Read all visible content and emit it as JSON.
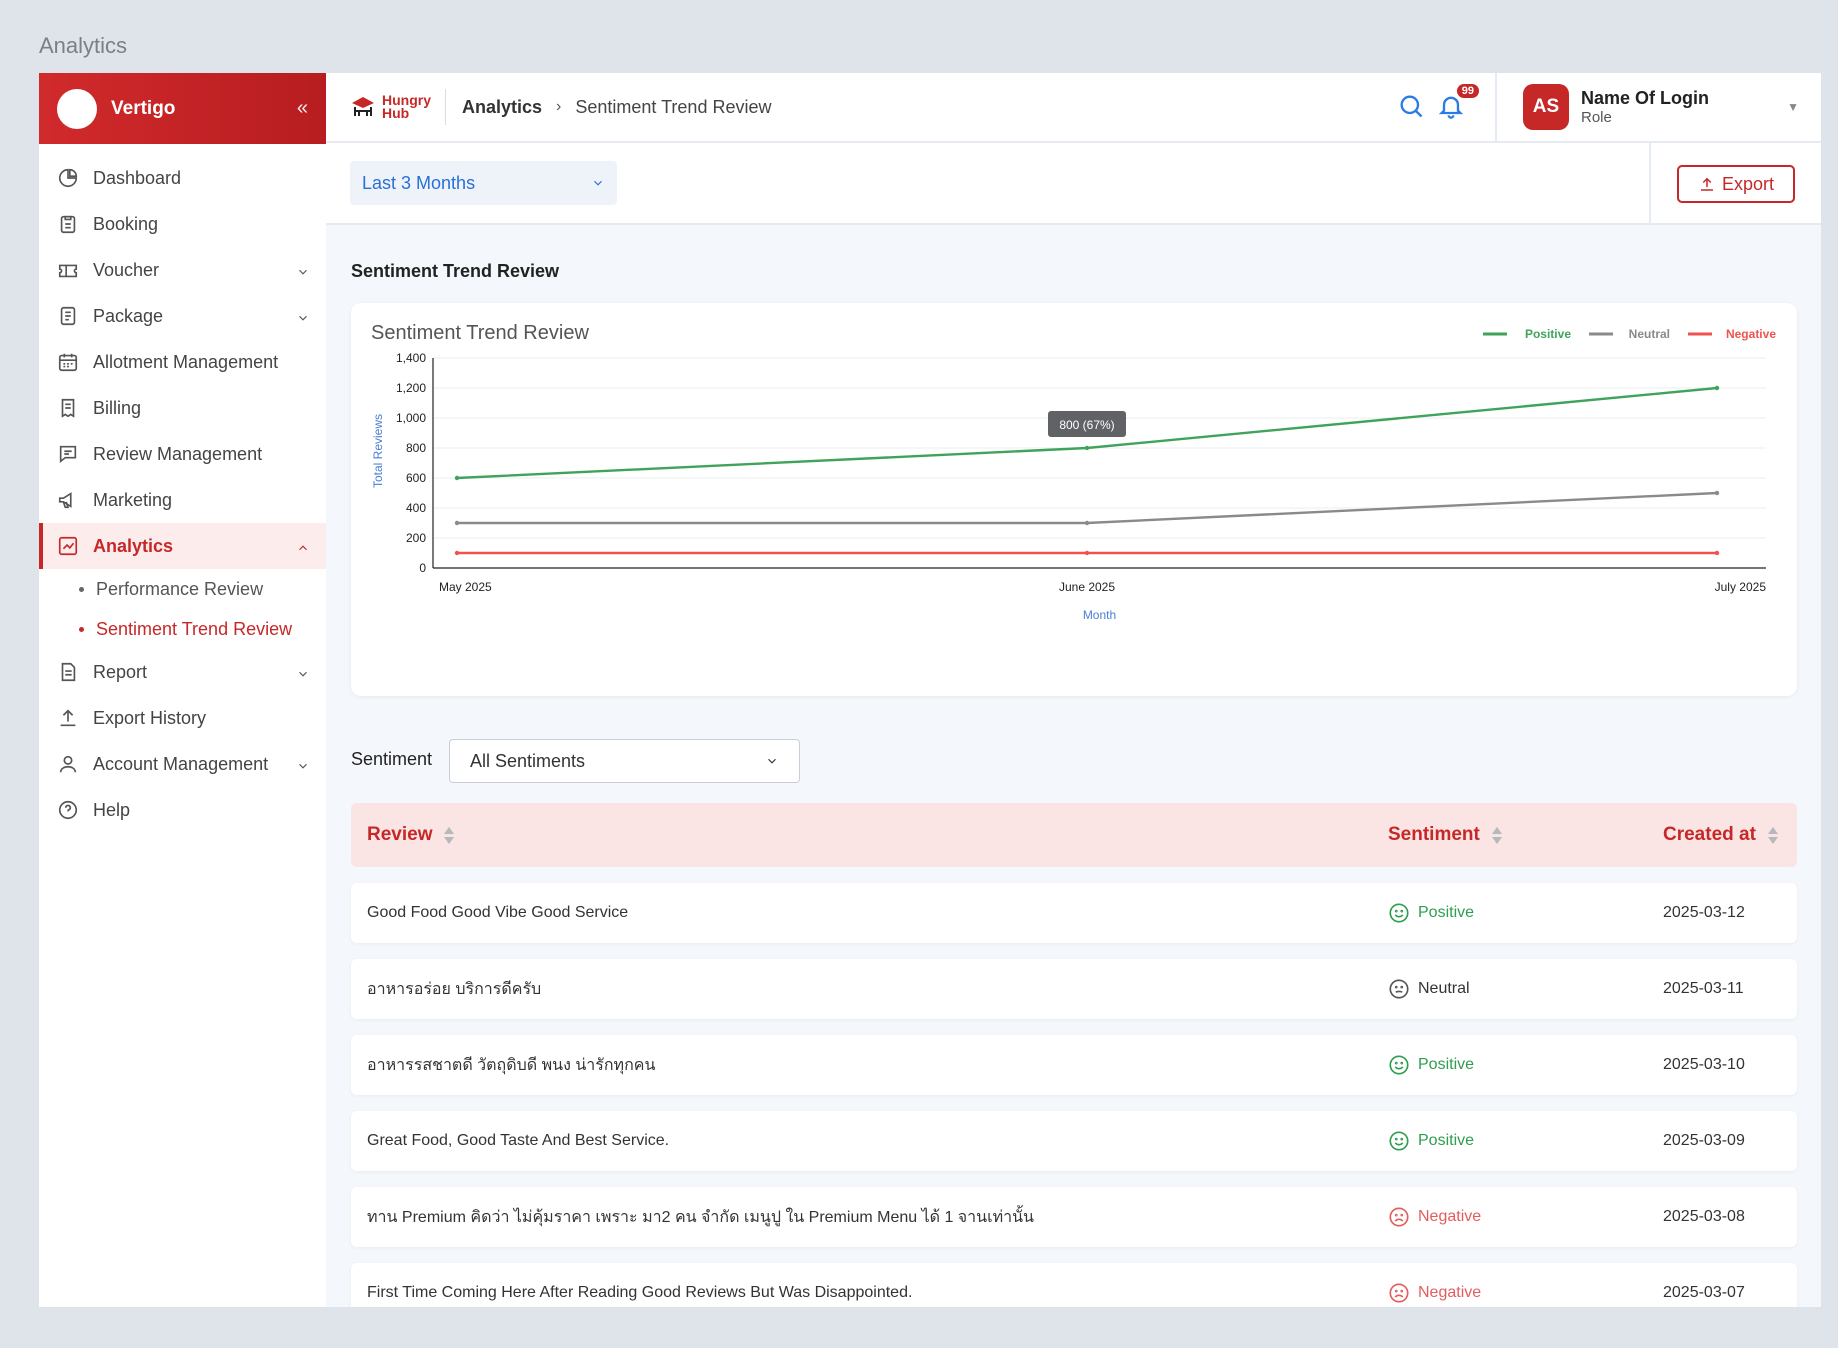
{
  "page_label": "Analytics",
  "sidebar": {
    "brand": "Vertigo",
    "collapse_icon": "double-chevron-left-icon",
    "items": [
      {
        "label": "Dashboard",
        "icon": "dashboard-icon"
      },
      {
        "label": "Booking",
        "icon": "clipboard-icon"
      },
      {
        "label": "Voucher",
        "icon": "ticket-icon"
      },
      {
        "label": "Package",
        "icon": "document-icon"
      },
      {
        "label": "Allotment Management",
        "icon": "calendar-icon"
      },
      {
        "label": "Billing",
        "icon": "receipt-icon"
      },
      {
        "label": "Review Management",
        "icon": "chat-icon"
      },
      {
        "label": "Marketing",
        "icon": "megaphone-icon"
      },
      {
        "label": "Analytics",
        "icon": "chart-icon"
      },
      {
        "label": "Report",
        "icon": "report-icon"
      },
      {
        "label": "Export History",
        "icon": "upload-icon"
      },
      {
        "label": "Account Management",
        "icon": "user-icon"
      },
      {
        "label": "Help",
        "icon": "help-icon"
      }
    ],
    "sub_items": [
      "Performance Review",
      "Sentiment Trend Review"
    ]
  },
  "header": {
    "logo_line1": "Hungry",
    "logo_line2": "Hub",
    "breadcrumb_parent": "Analytics",
    "breadcrumb_current": "Sentiment Trend Review",
    "notification_count": "99",
    "user_initials": "AS",
    "user_name": "Name Of Login",
    "user_role": "Role"
  },
  "filters": {
    "date_range": "Last 3 Months",
    "export_label": "Export"
  },
  "section_title": "Sentiment Trend Review",
  "chart_data": {
    "type": "line",
    "title": "Sentiment Trend Review",
    "xlabel": "Month",
    "ylabel": "Total Reviews",
    "categories": [
      "May 2025",
      "June 2025",
      "July 2025"
    ],
    "ylim": [
      0,
      1400
    ],
    "yticks": [
      "0",
      "200",
      "400",
      "600",
      "800",
      "1,000",
      "1,200",
      "1,400"
    ],
    "legend_position": "top-right",
    "grid": true,
    "series": [
      {
        "name": "Positive",
        "values": [
          600,
          800,
          1200
        ],
        "color": "#3fa35b"
      },
      {
        "name": "Neutral",
        "values": [
          300,
          300,
          500
        ],
        "color": "#8a8a8a"
      },
      {
        "name": "Negative",
        "values": [
          100,
          100,
          100
        ],
        "color": "#ef5350"
      }
    ],
    "tooltip": "800 (67%)"
  },
  "sentiment_filter": {
    "label": "Sentiment",
    "value": "All Sentiments"
  },
  "table": {
    "headers": {
      "review": "Review",
      "sentiment": "Sentiment",
      "created_at": "Created at"
    },
    "rows": [
      {
        "review": "Good Food Good Vibe Good Service",
        "sentiment": "Positive",
        "date": "2025-03-12"
      },
      {
        "review": "อาหารอร่อย บริการดีครับ",
        "sentiment": "Neutral",
        "date": "2025-03-11"
      },
      {
        "review": "อาหารรสชาตดี วัตถุดิบดี พนง น่ารักทุกคน",
        "sentiment": "Positive",
        "date": "2025-03-10"
      },
      {
        "review": "Great Food, Good Taste And Best Service.",
        "sentiment": "Positive",
        "date": "2025-03-09"
      },
      {
        "review": "ทาน Premium คิดว่า ไม่คุ้มราคา เพราะ มา2 คน จำกัด เมนูปู ใน Premium Menu ได้ 1 จานเท่านั้น",
        "sentiment": "Negative",
        "date": "2025-03-08"
      },
      {
        "review": "First Time Coming Here After Reading Good Reviews But Was Disappointed.",
        "sentiment": "Negative",
        "date": "2025-03-07"
      }
    ]
  }
}
